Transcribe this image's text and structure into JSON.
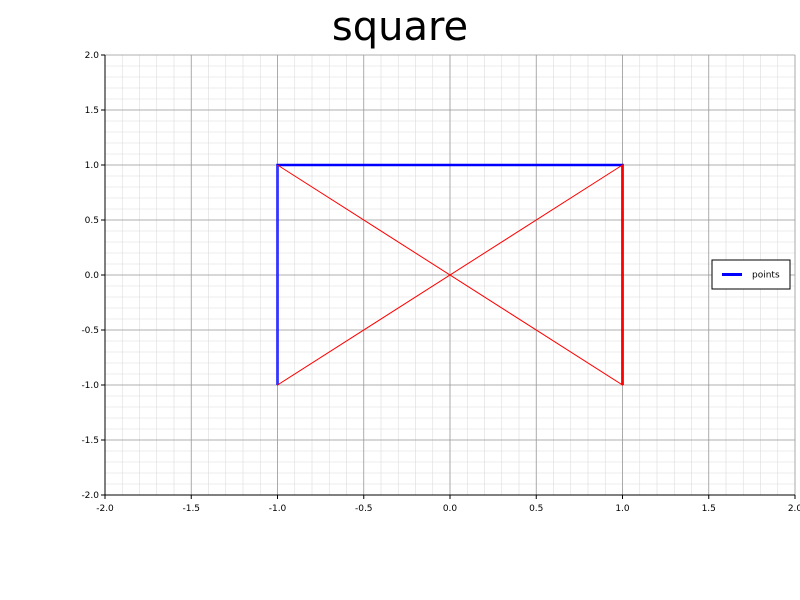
{
  "chart_data": {
    "type": "line",
    "title": "square",
    "xlabel": "",
    "ylabel": "",
    "xlim": [
      -2.0,
      2.0
    ],
    "ylim": [
      -2.0,
      2.0
    ],
    "xticks": [
      "-2.0",
      "-1.5",
      "-1.0",
      "-0.5",
      "0.0",
      "0.5",
      "1.0",
      "1.5",
      "2.0"
    ],
    "yticks": [
      "-2.0",
      "-1.5",
      "-1.0",
      "-0.5",
      "0.0",
      "0.5",
      "1.0",
      "1.5",
      "2.0"
    ],
    "grid": true,
    "minor_grid": true,
    "legend_position": "right",
    "series": [
      {
        "name": "points",
        "color": "#0000ff",
        "x": [
          -1,
          -1,
          1,
          1
        ],
        "y": [
          -1,
          1,
          1,
          -1
        ]
      },
      {
        "color": "#ff0000",
        "x": [
          -1,
          1,
          1,
          -1,
          -1
        ],
        "y": [
          1,
          -1,
          1,
          -1,
          1
        ]
      }
    ]
  }
}
